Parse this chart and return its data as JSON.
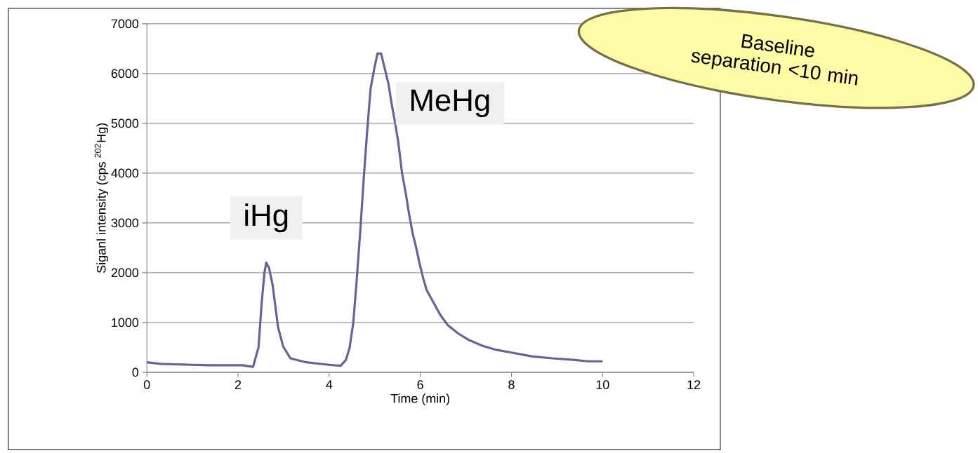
{
  "chart_data": {
    "type": "line",
    "xlabel": "Time (min)",
    "ylabel": "Siganl intensity (cps $^{202}$Hg)",
    "xlim": [
      0,
      12
    ],
    "ylim": [
      0,
      7000
    ],
    "xticks": [
      0,
      2,
      4,
      6,
      8,
      10,
      12
    ],
    "yticks": [
      0,
      1000,
      2000,
      3000,
      4000,
      5000,
      6000,
      7000
    ],
    "grid": "y",
    "x": [
      0,
      0.3,
      0.6,
      1.0,
      1.4,
      1.8,
      2.1,
      2.33,
      2.45,
      2.52,
      2.58,
      2.62,
      2.68,
      2.76,
      2.88,
      2.99,
      3.15,
      3.5,
      4.0,
      4.25,
      4.37,
      4.45,
      4.53,
      4.6,
      4.68,
      4.76,
      4.83,
      4.91,
      4.99,
      5.06,
      5.14,
      5.22,
      5.3,
      5.37,
      5.45,
      5.52,
      5.6,
      5.68,
      5.75,
      5.83,
      5.91,
      5.98,
      6.06,
      6.14,
      6.29,
      6.44,
      6.6,
      6.83,
      7.06,
      7.37,
      7.67,
      7.98,
      8.44,
      8.9,
      9.36,
      9.67,
      10.0
    ],
    "series": [
      {
        "color": "#646496",
        "values": [
          200,
          170,
          160,
          150,
          140,
          140,
          140,
          110,
          500,
          1400,
          2000,
          2200,
          2100,
          1750,
          900,
          520,
          280,
          200,
          150,
          130,
          250,
          500,
          1000,
          1800,
          2800,
          3900,
          4800,
          5700,
          6100,
          6400,
          6400,
          6100,
          5800,
          5400,
          5000,
          4600,
          4000,
          3600,
          3200,
          2800,
          2500,
          2200,
          1900,
          1650,
          1400,
          1150,
          950,
          780,
          650,
          530,
          450,
          400,
          320,
          280,
          250,
          220,
          220
        ]
      }
    ],
    "annotations": [
      {
        "text": "iHg",
        "x": 2.62,
        "y": 2200
      },
      {
        "text": "MeHg",
        "x": 5.1,
        "y": 6400
      },
      "Baseline separation <10 min"
    ]
  }
}
